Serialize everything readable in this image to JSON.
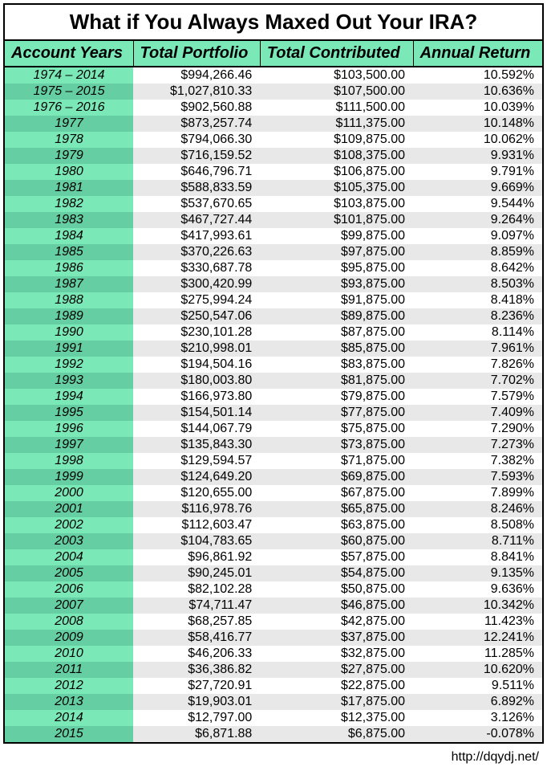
{
  "title": "What if You Always Maxed Out Your IRA?",
  "headers": [
    "Account Years",
    "Total Portfolio",
    "Total Contributed",
    "Annual Return"
  ],
  "source": "http://dqydj.net/",
  "rows": [
    [
      "1974 – 2014",
      "$994,266.46",
      "$103,500.00",
      "10.592%"
    ],
    [
      "1975 – 2015",
      "$1,027,810.33",
      "$107,500.00",
      "10.636%"
    ],
    [
      "1976 – 2016",
      "$902,560.88",
      "$111,500.00",
      "10.039%"
    ],
    [
      "1977",
      "$873,257.74",
      "$111,375.00",
      "10.148%"
    ],
    [
      "1978",
      "$794,066.30",
      "$109,875.00",
      "10.062%"
    ],
    [
      "1979",
      "$716,159.52",
      "$108,375.00",
      "9.931%"
    ],
    [
      "1980",
      "$646,796.71",
      "$106,875.00",
      "9.791%"
    ],
    [
      "1981",
      "$588,833.59",
      "$105,375.00",
      "9.669%"
    ],
    [
      "1982",
      "$537,670.65",
      "$103,875.00",
      "9.544%"
    ],
    [
      "1983",
      "$467,727.44",
      "$101,875.00",
      "9.264%"
    ],
    [
      "1984",
      "$417,993.61",
      "$99,875.00",
      "9.097%"
    ],
    [
      "1985",
      "$370,226.63",
      "$97,875.00",
      "8.859%"
    ],
    [
      "1986",
      "$330,687.78",
      "$95,875.00",
      "8.642%"
    ],
    [
      "1987",
      "$300,420.99",
      "$93,875.00",
      "8.503%"
    ],
    [
      "1988",
      "$275,994.24",
      "$91,875.00",
      "8.418%"
    ],
    [
      "1989",
      "$250,547.06",
      "$89,875.00",
      "8.236%"
    ],
    [
      "1990",
      "$230,101.28",
      "$87,875.00",
      "8.114%"
    ],
    [
      "1991",
      "$210,998.01",
      "$85,875.00",
      "7.961%"
    ],
    [
      "1992",
      "$194,504.16",
      "$83,875.00",
      "7.826%"
    ],
    [
      "1993",
      "$180,003.80",
      "$81,875.00",
      "7.702%"
    ],
    [
      "1994",
      "$166,973.80",
      "$79,875.00",
      "7.579%"
    ],
    [
      "1995",
      "$154,501.14",
      "$77,875.00",
      "7.409%"
    ],
    [
      "1996",
      "$144,067.79",
      "$75,875.00",
      "7.290%"
    ],
    [
      "1997",
      "$135,843.30",
      "$73,875.00",
      "7.273%"
    ],
    [
      "1998",
      "$129,594.57",
      "$71,875.00",
      "7.382%"
    ],
    [
      "1999",
      "$124,649.20",
      "$69,875.00",
      "7.593%"
    ],
    [
      "2000",
      "$120,655.00",
      "$67,875.00",
      "7.899%"
    ],
    [
      "2001",
      "$116,978.76",
      "$65,875.00",
      "8.246%"
    ],
    [
      "2002",
      "$112,603.47",
      "$63,875.00",
      "8.508%"
    ],
    [
      "2003",
      "$104,783.65",
      "$60,875.00",
      "8.711%"
    ],
    [
      "2004",
      "$96,861.92",
      "$57,875.00",
      "8.841%"
    ],
    [
      "2005",
      "$90,245.01",
      "$54,875.00",
      "9.135%"
    ],
    [
      "2006",
      "$82,102.28",
      "$50,875.00",
      "9.636%"
    ],
    [
      "2007",
      "$74,711.47",
      "$46,875.00",
      "10.342%"
    ],
    [
      "2008",
      "$68,257.85",
      "$42,875.00",
      "11.423%"
    ],
    [
      "2009",
      "$58,416.77",
      "$37,875.00",
      "12.241%"
    ],
    [
      "2010",
      "$46,206.33",
      "$32,875.00",
      "11.285%"
    ],
    [
      "2011",
      "$36,386.82",
      "$27,875.00",
      "10.620%"
    ],
    [
      "2012",
      "$27,720.91",
      "$22,875.00",
      "9.511%"
    ],
    [
      "2013",
      "$19,903.01",
      "$17,875.00",
      "6.892%"
    ],
    [
      "2014",
      "$12,797.00",
      "$12,375.00",
      "3.126%"
    ],
    [
      "2015",
      "$6,871.88",
      "$6,875.00",
      "-0.078%"
    ]
  ]
}
